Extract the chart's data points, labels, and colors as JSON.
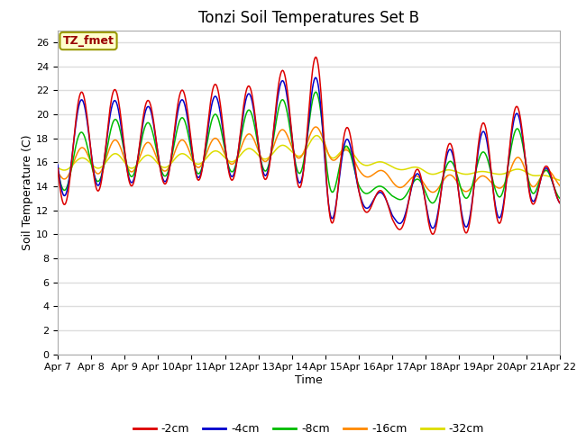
{
  "title": "Tonzi Soil Temperatures Set B",
  "xlabel": "Time",
  "ylabel": "Soil Temperature (C)",
  "annotation": "TZ_fmet",
  "annotation_bg": "#ffffcc",
  "annotation_border": "#999900",
  "annotation_color": "#990000",
  "ylim": [
    0,
    27
  ],
  "yticks": [
    0,
    2,
    4,
    6,
    8,
    10,
    12,
    14,
    16,
    18,
    20,
    22,
    24,
    26
  ],
  "colors": {
    "-2cm": "#dd0000",
    "-4cm": "#0000cc",
    "-8cm": "#00bb00",
    "-16cm": "#ff8800",
    "-32cm": "#dddd00"
  },
  "legend_labels": [
    "-2cm",
    "-4cm",
    "-8cm",
    "-16cm",
    "-32cm"
  ],
  "xtick_labels": [
    "Apr 7",
    "Apr 8",
    "Apr 9",
    "Apr 10",
    "Apr 11",
    "Apr 12",
    "Apr 13",
    "Apr 14",
    "Apr 15",
    "Apr 16",
    "Apr 17",
    "Apr 18",
    "Apr 19",
    "Apr 20",
    "Apr 21",
    "Apr 22"
  ],
  "bg_color": "#ffffff",
  "plot_bg_color": "#ffffff",
  "grid_color": "#dddddd",
  "title_fontsize": 12,
  "axis_label_fontsize": 9,
  "tick_fontsize": 8
}
